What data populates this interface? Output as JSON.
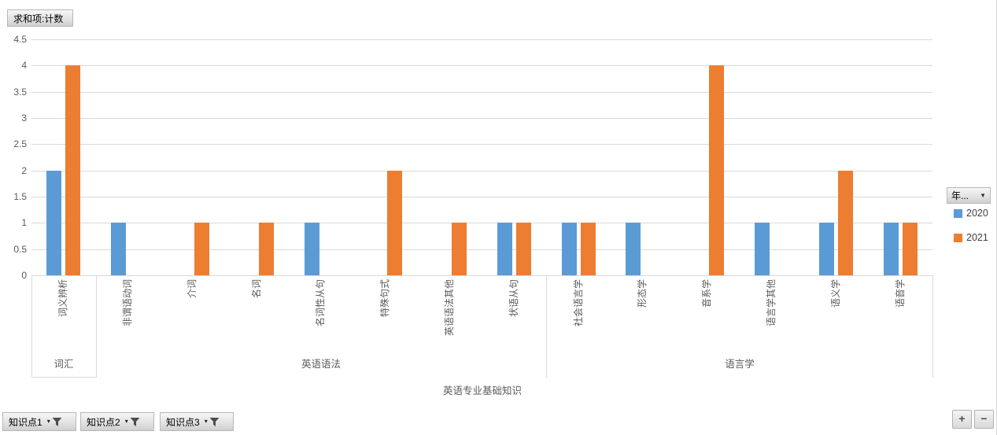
{
  "value_field_button": {
    "label": "求和项:计数"
  },
  "legend": {
    "field_button_label": "年...",
    "items": [
      {
        "label": "2020",
        "color": "#5B9BD5"
      },
      {
        "label": "2021",
        "color": "#ED7D31"
      }
    ]
  },
  "axis_field_buttons": [
    {
      "label": "知识点1"
    },
    {
      "label": "知识点2"
    },
    {
      "label": "知识点3"
    }
  ],
  "expand_collapse": {
    "plus_label": "+",
    "minus_label": "−"
  },
  "colors": {
    "series_2020": "#5B9BD5",
    "series_2021": "#ED7D31",
    "gridline": "#D9D9D9",
    "axis_text": "#595959"
  },
  "chart_data": {
    "type": "bar",
    "title": "求和项:计数",
    "categories": [
      "词义辨析",
      "非谓语动词",
      "介词",
      "名词",
      "名词性从句",
      "特殊句式",
      "英语语法其他",
      "状语从句",
      "社会语言学",
      "形态学",
      "音系学",
      "语言学其他",
      "语义学",
      "语音学"
    ],
    "series": [
      {
        "name": "2020",
        "color": "#5B9BD5",
        "values": [
          2,
          1,
          0,
          0,
          1,
          0,
          0,
          1,
          1,
          1,
          0,
          1,
          1,
          1
        ]
      },
      {
        "name": "2021",
        "color": "#ED7D31",
        "values": [
          4,
          0,
          1,
          1,
          0,
          2,
          1,
          1,
          1,
          0,
          4,
          0,
          2,
          1
        ]
      }
    ],
    "category_groups": [
      {
        "label": "词汇",
        "categories": [
          "词义辨析"
        ]
      },
      {
        "label": "英语语法",
        "categories": [
          "非谓语动词",
          "介词",
          "名词",
          "名词性从句",
          "特殊句式",
          "英语语法其他",
          "状语从句"
        ]
      },
      {
        "label": "语言学",
        "categories": [
          "社会语言学",
          "形态学",
          "音系学",
          "语言学其他",
          "语义学",
          "语音学"
        ]
      }
    ],
    "axis_root_label": "英语专业基础知识",
    "value_axis": {
      "min": 0,
      "max": 4.5,
      "step": 0.5,
      "ticks": [
        "0",
        "0.5",
        "1",
        "1.5",
        "2",
        "2.5",
        "3",
        "3.5",
        "4",
        "4.5"
      ]
    },
    "grid": true,
    "legend_position": "right"
  }
}
